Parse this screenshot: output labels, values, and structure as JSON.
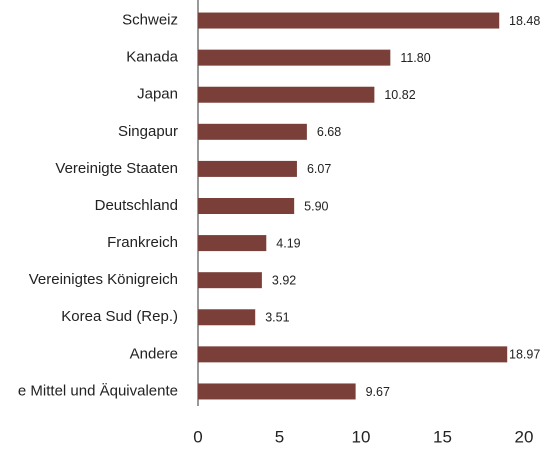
{
  "chart_data": {
    "type": "barh",
    "categories": [
      "Schweiz",
      "Kanada",
      "Japan",
      "Singapur",
      "Vereinigte Staaten",
      "Deutschland",
      "Frankreich",
      "Vereinigtes Königreich",
      "Korea Sud (Rep.)",
      "Andere",
      "e Mittel und Äquivalente"
    ],
    "values": [
      18.48,
      11.8,
      10.82,
      6.68,
      6.07,
      5.9,
      4.19,
      3.92,
      3.51,
      18.97,
      9.67
    ],
    "value_labels": [
      "18.48",
      "11.80",
      "10.82",
      "6.68",
      "6.07",
      "5.90",
      "4.19",
      "3.92",
      "3.51",
      "18.97",
      "9.67"
    ],
    "color": "#7b3f3a",
    "xlim": [
      0,
      20
    ],
    "xticks": [
      0,
      5,
      10,
      15,
      20
    ]
  }
}
